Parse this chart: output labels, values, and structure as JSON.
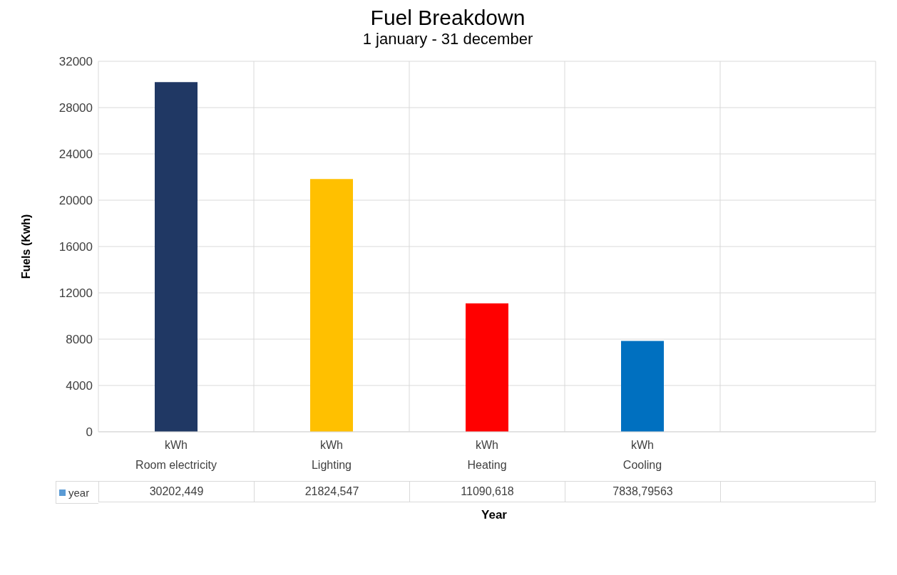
{
  "chart_data": {
    "type": "bar",
    "title": "Fuel Breakdown",
    "subtitle": "1 january - 31 december",
    "xlabel": "Year",
    "ylabel": "Fuels (Kwh)",
    "categories": [
      "kWh\nRoom electricity",
      "kWh\nLighting",
      "kWh\nHeating",
      "kWh\nCooling",
      null
    ],
    "series": [
      {
        "name": "year",
        "color": "#5b9bd5",
        "values": [
          30202.449,
          21824.547,
          11090.618,
          7838.79563,
          null
        ],
        "colors": [
          "#203864",
          "#ffc000",
          "#ff0000",
          "#0070c0",
          null
        ],
        "value_labels": [
          "30202,449",
          "21824,547",
          "11090,618",
          "7838,79563",
          null
        ]
      }
    ],
    "ylim": [
      0,
      32000
    ],
    "yticks": [
      0,
      4000,
      8000,
      12000,
      16000,
      20000,
      24000,
      28000,
      32000
    ],
    "grid": true,
    "legend": "bottom"
  }
}
